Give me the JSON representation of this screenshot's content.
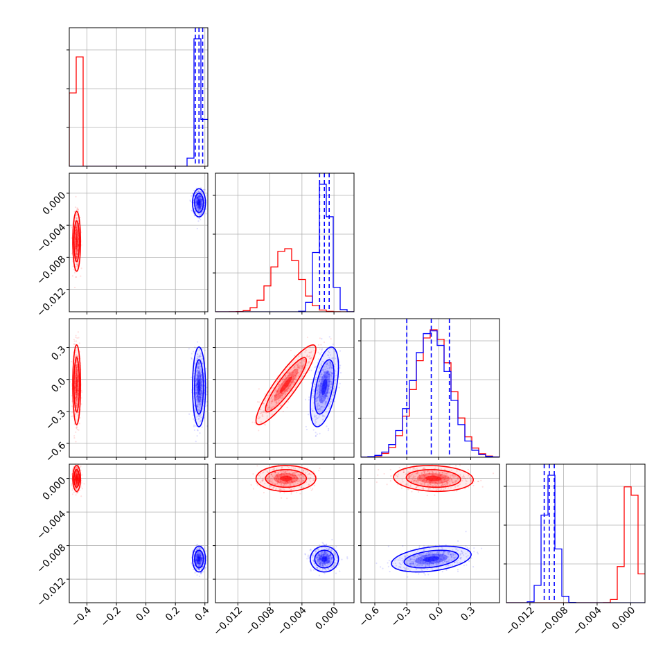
{
  "chart_data": {
    "type": "corner",
    "title": "",
    "colors": {
      "red": "#ff0000",
      "blue": "#0000ff",
      "grid": "#b0b0b0",
      "axes": "#000000"
    },
    "grid": true,
    "parameters": [
      {
        "index": 0,
        "range": [
          -0.52,
          0.42
        ],
        "ticks": [
          -0.4,
          -0.2,
          0.0,
          0.2,
          0.4
        ],
        "tick_labels": [
          "−0.4",
          "−0.2",
          "0.0",
          "0.2",
          "0.4"
        ]
      },
      {
        "index": 1,
        "range": [
          -0.0148,
          0.0025
        ],
        "ticks": [
          -0.012,
          -0.008,
          -0.004,
          0.0
        ],
        "tick_labels": [
          "−0.012",
          "−0.008",
          "−0.004",
          "0.000"
        ]
      },
      {
        "index": 2,
        "range": [
          -0.73,
          0.57
        ],
        "ticks": [
          -0.6,
          -0.3,
          0.0,
          0.3
        ],
        "tick_labels": [
          "−0.6",
          "−0.3",
          "0.0",
          "0.3"
        ]
      },
      {
        "index": 3,
        "range": [
          -0.0148,
          0.0017
        ],
        "ticks": [
          -0.012,
          -0.008,
          -0.004,
          0.0
        ],
        "tick_labels": [
          "−0.012",
          "−0.008",
          "−0.004",
          "0.000"
        ]
      }
    ],
    "series": [
      {
        "color": "red",
        "means": [
          -0.47,
          -0.006,
          -0.05,
          0.0
        ],
        "sigmas": [
          0.012,
          0.0017,
          0.17,
          0.0007
        ],
        "correlations": {
          "1-2": 0.9,
          "2-3": -0.1
        }
      },
      {
        "color": "blue",
        "means": [
          0.36,
          -0.0012,
          -0.07,
          -0.0096
        ],
        "sigmas": [
          0.02,
          0.0008,
          0.17,
          0.0007
        ],
        "correlations": {
          "1-2": 0.5,
          "2-3": 0.35
        }
      }
    ],
    "quantile_lines": [
      {
        "param": 0,
        "values": [
          0.335,
          0.36,
          0.385
        ],
        "style": "dashed",
        "color": "blue"
      },
      {
        "param": 1,
        "values": [
          -0.0018,
          -0.0012,
          -0.0006
        ],
        "style": "dashed",
        "color": "blue"
      },
      {
        "param": 2,
        "values": [
          -0.3,
          -0.07,
          0.1
        ],
        "style": "dashed",
        "color": "blue"
      },
      {
        "param": 3,
        "values": [
          -0.0103,
          -0.0097,
          -0.0091
        ],
        "style": "dashed",
        "color": "blue"
      }
    ]
  }
}
